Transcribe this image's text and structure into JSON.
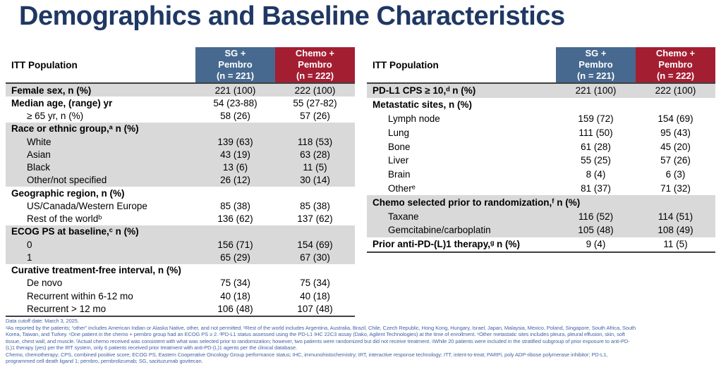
{
  "title": "Demographics and Baseline Characteristics",
  "colors": {
    "title_color": "#1F3864",
    "header_blue": "#47698F",
    "header_red": "#A41E32",
    "stripe_gray": "#D9D9D9",
    "footnote_blue": "#4464A4",
    "border_dark": "#404040"
  },
  "tables": {
    "left": {
      "corner_label": "ITT Population",
      "col1": "SG +\nPembro\n(n = 221)",
      "col2": "Chemo +\nPembro\n(n = 222)",
      "rows": [
        {
          "label": "Female sex, n (%)",
          "bold": true,
          "indent": false,
          "shaded": true,
          "v1": "221 (100)",
          "v2": "222 (100)"
        },
        {
          "label": "Median age, (range) yr",
          "bold": true,
          "indent": false,
          "shaded": false,
          "v1": "54 (23-88)",
          "v2": "55 (27-82)"
        },
        {
          "label": "≥ 65 yr, n (%)",
          "bold": false,
          "indent": true,
          "shaded": false,
          "v1": "58 (26)",
          "v2": "57 (26)"
        },
        {
          "label": "Race or ethnic group,ᵃ n (%)",
          "bold": true,
          "indent": false,
          "shaded": true,
          "v1": "",
          "v2": ""
        },
        {
          "label": "White",
          "bold": false,
          "indent": true,
          "shaded": true,
          "v1": "139 (63)",
          "v2": "118 (53)"
        },
        {
          "label": "Asian",
          "bold": false,
          "indent": true,
          "shaded": true,
          "v1": "43 (19)",
          "v2": "63 (28)"
        },
        {
          "label": "Black",
          "bold": false,
          "indent": true,
          "shaded": true,
          "v1": "13 (6)",
          "v2": "11 (5)"
        },
        {
          "label": "Other/not specified",
          "bold": false,
          "indent": true,
          "shaded": true,
          "v1": "26 (12)",
          "v2": "30 (14)"
        },
        {
          "label": "Geographic region, n (%)",
          "bold": true,
          "indent": false,
          "shaded": false,
          "v1": "",
          "v2": ""
        },
        {
          "label": "US/Canada/Western Europe",
          "bold": false,
          "indent": true,
          "shaded": false,
          "v1": "85 (38)",
          "v2": "85 (38)"
        },
        {
          "label": "Rest of the worldᵇ",
          "bold": false,
          "indent": true,
          "shaded": false,
          "v1": "136 (62)",
          "v2": "137 (62)"
        },
        {
          "label": "ECOG PS at baseline,ᶜ n (%)",
          "bold": true,
          "indent": false,
          "shaded": true,
          "v1": "",
          "v2": ""
        },
        {
          "label": "0",
          "bold": false,
          "indent": true,
          "shaded": true,
          "v1": "156 (71)",
          "v2": "154 (69)"
        },
        {
          "label": "1",
          "bold": false,
          "indent": true,
          "shaded": true,
          "v1": "65 (29)",
          "v2": "67 (30)"
        },
        {
          "label": "Curative treatment-free interval, n (%)",
          "bold": true,
          "indent": false,
          "shaded": false,
          "v1": "",
          "v2": ""
        },
        {
          "label": "De novo",
          "bold": false,
          "indent": true,
          "shaded": false,
          "v1": "75 (34)",
          "v2": "75 (34)"
        },
        {
          "label": "Recurrent within 6-12 mo",
          "bold": false,
          "indent": true,
          "shaded": false,
          "v1": "40 (18)",
          "v2": "40 (18)"
        },
        {
          "label": "Recurrent > 12 mo",
          "bold": false,
          "indent": true,
          "shaded": false,
          "v1": "106 (48)",
          "v2": "107 (48)"
        }
      ]
    },
    "right": {
      "corner_label": "ITT Population",
      "col1": "SG +\nPembro\n(n = 221)",
      "col2": "Chemo +\nPembro\n(n = 222)",
      "rows": [
        {
          "label": "PD-L1 CPS ≥ 10,ᵈ n (%)",
          "bold": true,
          "indent": false,
          "shaded": true,
          "v1": "221 (100)",
          "v2": "222 (100)"
        },
        {
          "label": "Metastatic sites, n (%)",
          "bold": true,
          "indent": false,
          "shaded": false,
          "v1": "",
          "v2": ""
        },
        {
          "label": "Lymph node",
          "bold": false,
          "indent": true,
          "shaded": false,
          "v1": "159 (72)",
          "v2": "154 (69)"
        },
        {
          "label": "Lung",
          "bold": false,
          "indent": true,
          "shaded": false,
          "v1": "111 (50)",
          "v2": "95 (43)"
        },
        {
          "label": "Bone",
          "bold": false,
          "indent": true,
          "shaded": false,
          "v1": "61 (28)",
          "v2": "45 (20)"
        },
        {
          "label": "Liver",
          "bold": false,
          "indent": true,
          "shaded": false,
          "v1": "55 (25)",
          "v2": "57 (26)"
        },
        {
          "label": "Brain",
          "bold": false,
          "indent": true,
          "shaded": false,
          "v1": "8 (4)",
          "v2": "6 (3)"
        },
        {
          "label": "Otherᵉ",
          "bold": false,
          "indent": true,
          "shaded": false,
          "v1": "81 (37)",
          "v2": "71 (32)"
        },
        {
          "label": "Chemo selected prior to randomization,ᶠ n (%)",
          "bold": true,
          "indent": false,
          "shaded": true,
          "v1": "",
          "v2": ""
        },
        {
          "label": "Taxane",
          "bold": false,
          "indent": true,
          "shaded": true,
          "v1": "116 (52)",
          "v2": "114 (51)"
        },
        {
          "label": "Gemcitabine/carboplatin",
          "bold": false,
          "indent": true,
          "shaded": true,
          "v1": "105 (48)",
          "v2": "108 (49)"
        },
        {
          "label": "Prior anti-PD-(L)1 therapy,ᵍ n (%)",
          "bold": true,
          "indent": false,
          "shaded": false,
          "v1": "9 (4)",
          "v2": "11 (5)"
        }
      ]
    }
  },
  "footnotes": {
    "lines": [
      "Data cutoff date: March 3, 2025.",
      "ᵃAs reported by the patients; “other” includes American Indian or Alaska Native, other, and not permitted. ᵇRest of the world includes Argentina, Australia, Brazil, Chile, Czech Republic, Hong Kong, Hungary, Israel, Japan, Malaysia, Mexico, Poland, Singapore, South Africa, South",
      "Korea, Taiwan, and Turkey. ᶜOne patient in the chemo + pembro group had an ECOG PS ≥ 2. ᵈPD-L1 status assessed using the PD-L1 IHC 22C3 assay (Dako, Agilent Technologies) at the time of enrollment. ᵉOther metastatic sites includes pleura, pleural effusion, skin, soft",
      "tissue, chest wall, and muscle. ᶠActual chemo received was consistent with what was selected prior to randomization; however, two patients were randomized but did not receive treatment. ᵍWhile 20 patients were included in the stratified subgroup of prior exposure to anti-PD-",
      "(L)1 therapy (yes) per the IRT system, only 6 patients received prior treatment with anti-PD-(L)1 agents per the clinical database.",
      "Chemo, chemotherapy; CPS, combined positive score; ECOG PS, Eastern Cooperative Oncology Group performance status; IHC, immunohistochemistry; IRT, interactive response technology; ITT, intent-to-treat; PARPi, poly ADP-ribose polymerase inhibitor; PD-L1,",
      "programmed cell death ligand 1; pembro, pembrolizumab; SG, sacituzumab govitecan."
    ]
  }
}
